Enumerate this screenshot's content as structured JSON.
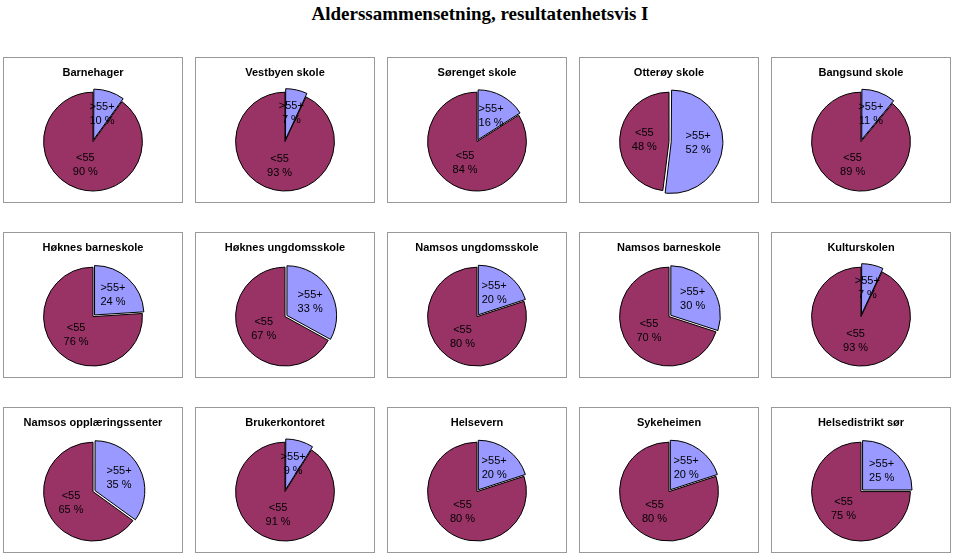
{
  "title": "Alderssammensetning, resultatenhetsvis I",
  "chart_data": [
    {
      "type": "pie",
      "title": "Barnehager",
      "categories": [
        ">55+",
        "<55"
      ],
      "values": [
        10,
        90
      ],
      "value_labels": [
        "10 %",
        "90 %"
      ],
      "colors": [
        "#9999FF",
        "#993366"
      ],
      "data_labels": true
    },
    {
      "type": "pie",
      "title": "Vestbyen skole",
      "categories": [
        ">55+",
        "<55"
      ],
      "values": [
        7,
        93
      ],
      "value_labels": [
        "7 %",
        "93 %"
      ],
      "colors": [
        "#9999FF",
        "#993366"
      ],
      "data_labels": true
    },
    {
      "type": "pie",
      "title": "Sørenget skole",
      "categories": [
        ">55+",
        "<55"
      ],
      "values": [
        16,
        84
      ],
      "value_labels": [
        "16 %",
        "84 %"
      ],
      "colors": [
        "#9999FF",
        "#993366"
      ],
      "data_labels": true
    },
    {
      "type": "pie",
      "title": "Otterøy skole",
      "categories": [
        ">55+",
        "<55"
      ],
      "values": [
        52,
        48
      ],
      "value_labels": [
        "52 %",
        "48 %"
      ],
      "colors": [
        "#9999FF",
        "#993366"
      ],
      "data_labels": true
    },
    {
      "type": "pie",
      "title": "Bangsund skole",
      "categories": [
        ">55+",
        "<55"
      ],
      "values": [
        11,
        89
      ],
      "value_labels": [
        "11 %",
        "89 %"
      ],
      "colors": [
        "#9999FF",
        "#993366"
      ],
      "data_labels": true
    },
    {
      "type": "pie",
      "title": "Høknes barneskole",
      "categories": [
        ">55+",
        "<55"
      ],
      "values": [
        24,
        76
      ],
      "value_labels": [
        "24 %",
        "76 %"
      ],
      "colors": [
        "#9999FF",
        "#993366"
      ],
      "data_labels": true
    },
    {
      "type": "pie",
      "title": "Høknes ungdomsskole",
      "categories": [
        ">55+",
        "<55"
      ],
      "values": [
        33,
        67
      ],
      "value_labels": [
        "33 %",
        "67 %"
      ],
      "colors": [
        "#9999FF",
        "#993366"
      ],
      "data_labels": true
    },
    {
      "type": "pie",
      "title": "Namsos ungdomsskole",
      "categories": [
        ">55+",
        "<55"
      ],
      "values": [
        20,
        80
      ],
      "value_labels": [
        "20 %",
        "80 %"
      ],
      "colors": [
        "#9999FF",
        "#993366"
      ],
      "data_labels": true
    },
    {
      "type": "pie",
      "title": "Namsos barneskole",
      "categories": [
        ">55+",
        "<55"
      ],
      "values": [
        30,
        70
      ],
      "value_labels": [
        "30 %",
        "70 %"
      ],
      "colors": [
        "#9999FF",
        "#993366"
      ],
      "data_labels": true
    },
    {
      "type": "pie",
      "title": "Kulturskolen",
      "categories": [
        ">55+",
        "<55"
      ],
      "values": [
        7,
        93
      ],
      "value_labels": [
        "7 %",
        "93 %"
      ],
      "colors": [
        "#9999FF",
        "#993366"
      ],
      "data_labels": true
    },
    {
      "type": "pie",
      "title": "Namsos opplæringssenter",
      "categories": [
        ">55+",
        "<55"
      ],
      "values": [
        35,
        65
      ],
      "value_labels": [
        "35 %",
        "65 %"
      ],
      "colors": [
        "#9999FF",
        "#993366"
      ],
      "data_labels": true
    },
    {
      "type": "pie",
      "title": "Brukerkontoret",
      "categories": [
        ">55+",
        "<55"
      ],
      "values": [
        9,
        91
      ],
      "value_labels": [
        "9 %",
        "91 %"
      ],
      "colors": [
        "#9999FF",
        "#993366"
      ],
      "data_labels": true
    },
    {
      "type": "pie",
      "title": "Helsevern",
      "categories": [
        ">55+",
        "<55"
      ],
      "values": [
        20,
        80
      ],
      "value_labels": [
        "20 %",
        "80 %"
      ],
      "colors": [
        "#9999FF",
        "#993366"
      ],
      "data_labels": true
    },
    {
      "type": "pie",
      "title": "Sykeheimen",
      "categories": [
        ">55+",
        "<55"
      ],
      "values": [
        20,
        80
      ],
      "value_labels": [
        "20 %",
        "80 %"
      ],
      "colors": [
        "#9999FF",
        "#993366"
      ],
      "data_labels": true
    },
    {
      "type": "pie",
      "title": "Helsedistrikt sør",
      "categories": [
        ">55+",
        "<55"
      ],
      "values": [
        25,
        75
      ],
      "value_labels": [
        "25 %",
        "75 %"
      ],
      "colors": [
        "#9999FF",
        "#993366"
      ],
      "data_labels": true
    }
  ]
}
